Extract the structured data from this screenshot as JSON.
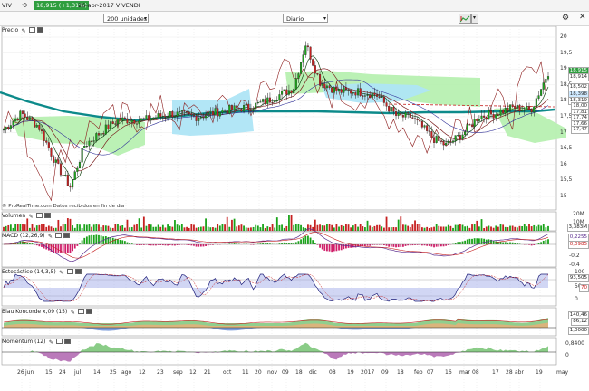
{
  "header": {
    "symbol": "VIV",
    "price": "18,915 (+1,31%)",
    "date_name": "26-abr-2017 VIVENDI"
  },
  "toolbar": {
    "units": "200 unidades",
    "period": "Diario"
  },
  "panels": {
    "price": {
      "title": "Precio",
      "source": "© ProRealTime.com Datos recibidos en fin de día"
    },
    "volume": {
      "title": "Volumen"
    },
    "macd": {
      "title": "MACD (12,26,9)"
    },
    "stoch": {
      "title": "Estocástico (14,3,5)"
    },
    "blau": {
      "title": "Blau Koncorde x,09 (15)"
    },
    "momentum": {
      "title": "Momentum (12)"
    }
  },
  "price_ticks": [
    "20",
    "19,5",
    "19",
    "18,5",
    "18",
    "17,5",
    "17",
    "16,5",
    "16",
    "15,5",
    "15"
  ],
  "price_labels": [
    {
      "text": "18,915",
      "bg": "#2f9e3f",
      "fg": "#ffffff"
    },
    {
      "text": "18,914",
      "bg": "#ffffff",
      "fg": "#333333"
    },
    {
      "text": "18,502",
      "bg": "#ffffff",
      "fg": "#333333"
    },
    {
      "text": "18,398",
      "bg": "#cfe9ff",
      "fg": "#333333"
    },
    {
      "text": "18,319",
      "bg": "#ffffff",
      "fg": "#333333"
    },
    {
      "text": "18,00",
      "bg": "#ffffff",
      "fg": "#333333"
    },
    {
      "text": "17,81",
      "bg": "#ffffff",
      "fg": "#333333"
    },
    {
      "text": "17,74",
      "bg": "#ffffff",
      "fg": "#333333"
    },
    {
      "text": "17,66",
      "bg": "#ffffff",
      "fg": "#333333"
    },
    {
      "text": "17,47",
      "bg": "#ffffff",
      "fg": "#333333"
    }
  ],
  "volume_ticks": [
    "20M",
    "10M"
  ],
  "volume_label": "3,383M",
  "macd_ticks": [
    "0,2",
    "0",
    "-0,2",
    "-0,4"
  ],
  "macd_labels": [
    "0,2255",
    "0,0985"
  ],
  "stoch_ticks": [
    "100",
    "50",
    "0"
  ],
  "stoch_labels": [
    "93,505",
    "70"
  ],
  "blau_ticks": [
    "140,46",
    "86,12",
    "1,0000"
  ],
  "momentum_ticks": [
    "0,8400",
    "0"
  ],
  "x_labels": [
    "26",
    "jun",
    "15",
    "24",
    "jul",
    "14",
    "25",
    "ago",
    "12",
    "23",
    "sep",
    "12",
    "21",
    "oct",
    "11",
    "20",
    "nov",
    "09",
    "18",
    "dic",
    "08",
    "19",
    "2017",
    "09",
    "18",
    "feb",
    "07",
    "16",
    "mar",
    "08",
    "17",
    "28",
    "abr",
    "19",
    "may"
  ],
  "colors": {
    "cloud_green": "#b7f0b1",
    "cloud_blue": "#aee5f6",
    "teal_ma": "#0c8a8a",
    "candle_green": "#1aa31a",
    "candle_red": "#c62020",
    "line_darkred": "#8b1a1a"
  }
}
